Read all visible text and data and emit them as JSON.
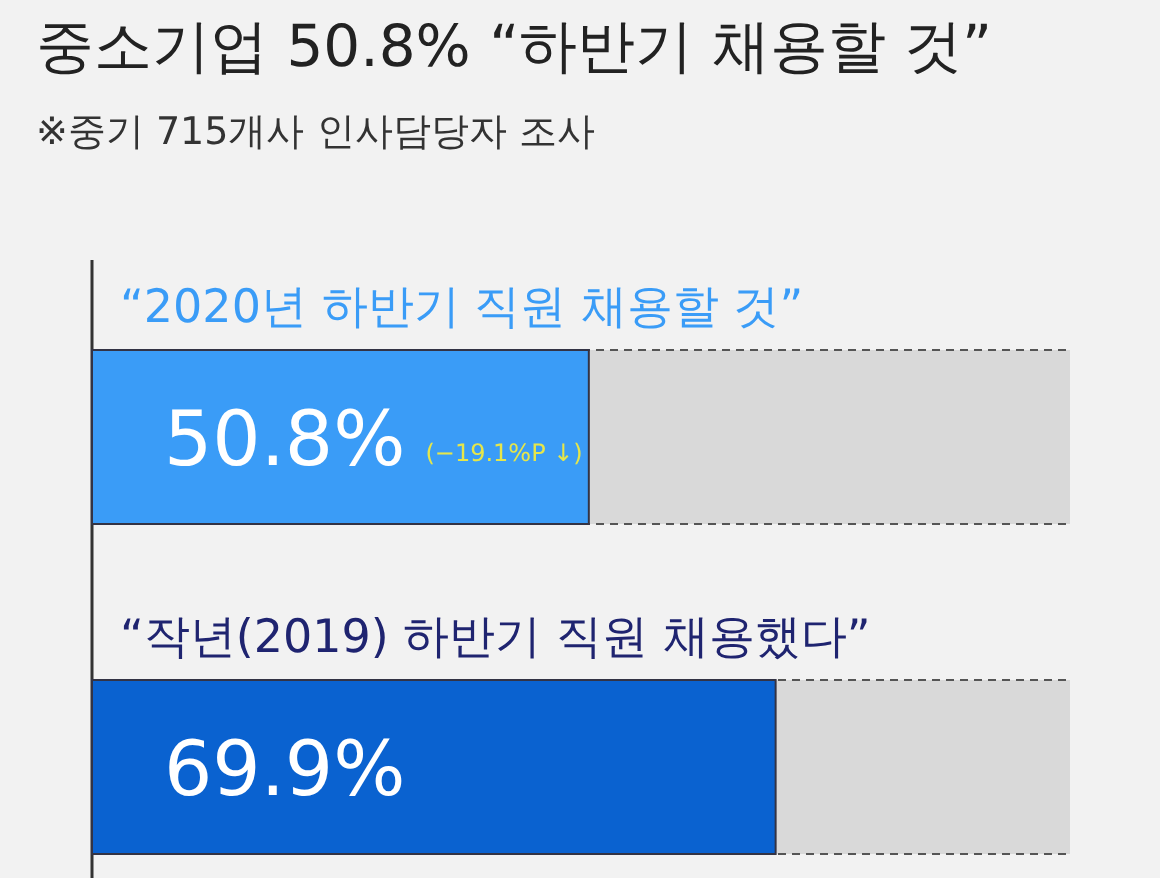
{
  "chart_data": {
    "type": "bar",
    "orientation": "horizontal",
    "title": "중소기업 50.8% “하반기 채용할 것”",
    "subtitle": "※중기 715개사 인사담당자 조사",
    "categories": [
      "“2020년 하반기 직원 채용할 것”",
      "“작년(2019) 하반기 직원 채용했다”"
    ],
    "values": [
      50.8,
      69.9
    ],
    "colors": [
      "#3a9cf7",
      "#0a62d0"
    ],
    "value_labels": [
      "50.8%",
      "69.9%"
    ],
    "annotations": [
      "(−19.1%P ↓)"
    ],
    "xlim": [
      0,
      100
    ],
    "tick_labels": false
  }
}
